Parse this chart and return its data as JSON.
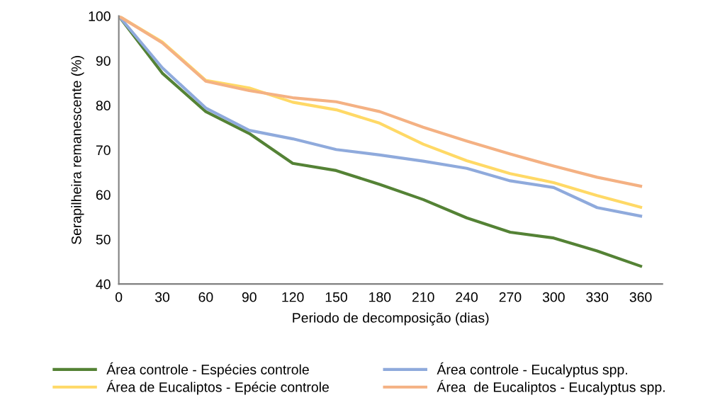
{
  "chart_data": {
    "type": "line",
    "xlabel": "Periodo de decomposição (dias)",
    "ylabel": "Serapilheira remanescente (%)",
    "categories": [
      "0",
      "30",
      "60",
      "90",
      "120",
      "150",
      "180",
      "210",
      "240",
      "270",
      "300",
      "330",
      "360"
    ],
    "ylim": [
      40,
      100
    ],
    "yticks": [
      40,
      50,
      60,
      70,
      80,
      90,
      100
    ],
    "grid": false,
    "legend": "bottom",
    "marker": "none",
    "line_style": "solid",
    "series": [
      {
        "name": "Área controle - Espécies controle",
        "color": "#548235",
        "values": [
          100,
          87.2,
          78.6,
          73.7,
          67.0,
          65.4,
          62.3,
          58.9,
          54.8,
          51.6,
          50.3,
          47.4,
          44.0
        ]
      },
      {
        "name": "Área de Eucaliptos - Epécie controle",
        "color": "#ffd966",
        "values": [
          100,
          94.2,
          85.6,
          83.9,
          80.7,
          79.0,
          76.0,
          71.3,
          67.6,
          64.7,
          62.7,
          59.8,
          57.2
        ]
      },
      {
        "name": "Área controle - Eucalyptus spp.",
        "color": "#8faadc",
        "values": [
          100,
          88.4,
          79.4,
          74.4,
          72.5,
          70.1,
          68.9,
          67.5,
          65.9,
          63.1,
          61.6,
          57.1,
          55.2
        ]
      },
      {
        "name": "Área  de Eucaliptos - Eucalyptus spp.",
        "color": "#f4b183",
        "values": [
          100,
          94.0,
          85.4,
          83.3,
          81.7,
          80.8,
          78.6,
          75.1,
          72.0,
          69.1,
          66.4,
          63.9,
          61.9
        ]
      }
    ]
  }
}
